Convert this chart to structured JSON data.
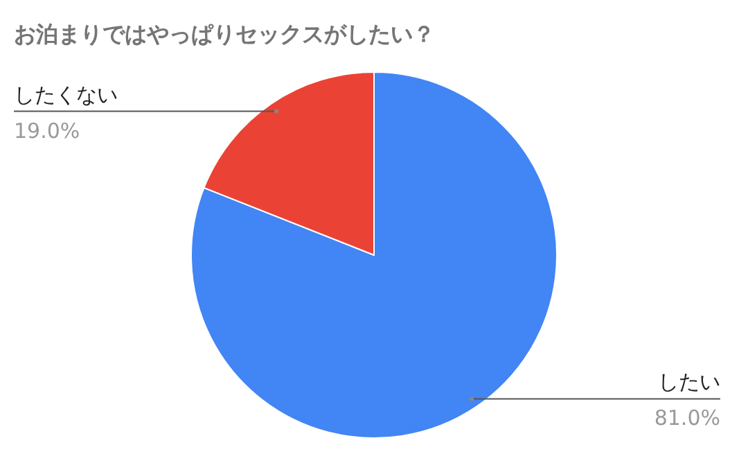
{
  "chart_data": {
    "type": "pie",
    "title": "お泊まりではやっぱりセックスがしたい？",
    "categories": [
      "したい",
      "したくない"
    ],
    "values": [
      81.0,
      19.0
    ],
    "colors": [
      "#4285f4",
      "#ea4335"
    ],
    "value_labels": [
      "81.0%",
      "19.0%"
    ]
  }
}
